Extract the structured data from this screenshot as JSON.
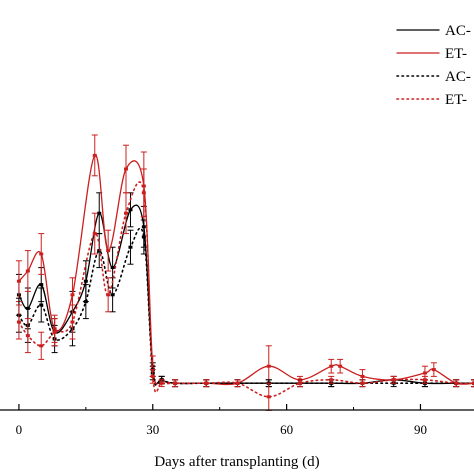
{
  "chart_data": {
    "type": "line",
    "xlabel": "Days after transplanting (d)",
    "ylabel": "",
    "title": "",
    "xlim": [
      -2,
      102
    ],
    "ylim": [
      0,
      1
    ],
    "xticks": [
      0,
      30,
      60,
      90
    ],
    "grid": false,
    "legend_position": "top-right",
    "series": [
      {
        "name": "AC-",
        "color": "#000000",
        "dash": "solid",
        "x": [
          0,
          2,
          5,
          8,
          12,
          15,
          18,
          21,
          25,
          28,
          30,
          32,
          35,
          42,
          49,
          56,
          63,
          70,
          77,
          84,
          91,
          98,
          102
        ],
        "y": [
          0.28,
          0.24,
          0.31,
          0.17,
          0.23,
          0.32,
          0.52,
          0.36,
          0.53,
          0.48,
          0.06,
          0.03,
          0.02,
          0.02,
          0.02,
          0.02,
          0.02,
          0.02,
          0.02,
          0.03,
          0.02,
          0.02,
          0.02
        ],
        "err": [
          0.06,
          0.06,
          0.05,
          0.04,
          0.06,
          0.06,
          0.06,
          0.06,
          0.05,
          0.06,
          0.02,
          0.01,
          0.01,
          0.01,
          0.01,
          0.01,
          0.01,
          0.01,
          0.01,
          0.01,
          0.01,
          0.01,
          0.01
        ]
      },
      {
        "name": "ET-",
        "color": "#cc1f1f",
        "dash": "solid",
        "x": [
          0,
          2,
          5,
          8,
          12,
          17,
          20,
          24,
          28,
          30,
          32,
          35,
          42,
          49,
          56,
          63,
          70,
          72,
          77,
          84,
          91,
          93,
          98,
          102
        ],
        "y": [
          0.32,
          0.35,
          0.4,
          0.18,
          0.28,
          0.69,
          0.41,
          0.65,
          0.6,
          0.07,
          0.03,
          0.02,
          0.02,
          0.02,
          0.07,
          0.03,
          0.07,
          0.07,
          0.04,
          0.03,
          0.05,
          0.06,
          0.02,
          0.02
        ],
        "err": [
          0.06,
          0.06,
          0.06,
          0.04,
          0.05,
          0.06,
          0.06,
          0.07,
          0.1,
          0.03,
          0.01,
          0.01,
          0.01,
          0.01,
          0.06,
          0.01,
          0.02,
          0.02,
          0.02,
          0.01,
          0.02,
          0.02,
          0.01,
          0.01
        ]
      },
      {
        "name": "AC-",
        "color": "#000000",
        "dash": "dotted",
        "x": [
          0,
          2,
          5,
          8,
          12,
          15,
          18,
          21,
          25,
          28,
          30,
          32,
          35,
          42,
          49,
          56,
          63,
          70,
          77,
          84,
          91,
          98,
          102
        ],
        "y": [
          0.22,
          0.19,
          0.25,
          0.15,
          0.18,
          0.26,
          0.41,
          0.28,
          0.42,
          0.45,
          0.05,
          0.03,
          0.02,
          0.02,
          0.02,
          0.02,
          0.02,
          0.02,
          0.02,
          0.02,
          0.02,
          0.02,
          0.02
        ],
        "err": [
          0.05,
          0.05,
          0.05,
          0.04,
          0.05,
          0.05,
          0.05,
          0.05,
          0.05,
          0.05,
          0.02,
          0.01,
          0.01,
          0.01,
          0.01,
          0.01,
          0.01,
          0.01,
          0.01,
          0.01,
          0.01,
          0.01,
          0.01
        ]
      },
      {
        "name": "ET-",
        "color": "#cc1f1f",
        "dash": "dotted",
        "x": [
          0,
          2,
          5,
          8,
          12,
          17,
          20,
          24,
          28,
          30,
          32,
          35,
          42,
          49,
          56,
          63,
          70,
          77,
          84,
          91,
          98,
          102
        ],
        "y": [
          0.2,
          0.16,
          0.13,
          0.17,
          0.2,
          0.46,
          0.28,
          0.52,
          0.58,
          0.04,
          0.02,
          0.02,
          0.02,
          0.02,
          -0.02,
          0.02,
          0.03,
          0.02,
          0.03,
          0.03,
          0.02,
          0.02
        ],
        "err": [
          0.05,
          0.05,
          0.04,
          0.04,
          0.05,
          0.06,
          0.05,
          0.06,
          0.07,
          0.02,
          0.01,
          0.01,
          0.01,
          0.01,
          0.04,
          0.01,
          0.01,
          0.01,
          0.01,
          0.01,
          0.01,
          0.01
        ]
      }
    ]
  }
}
